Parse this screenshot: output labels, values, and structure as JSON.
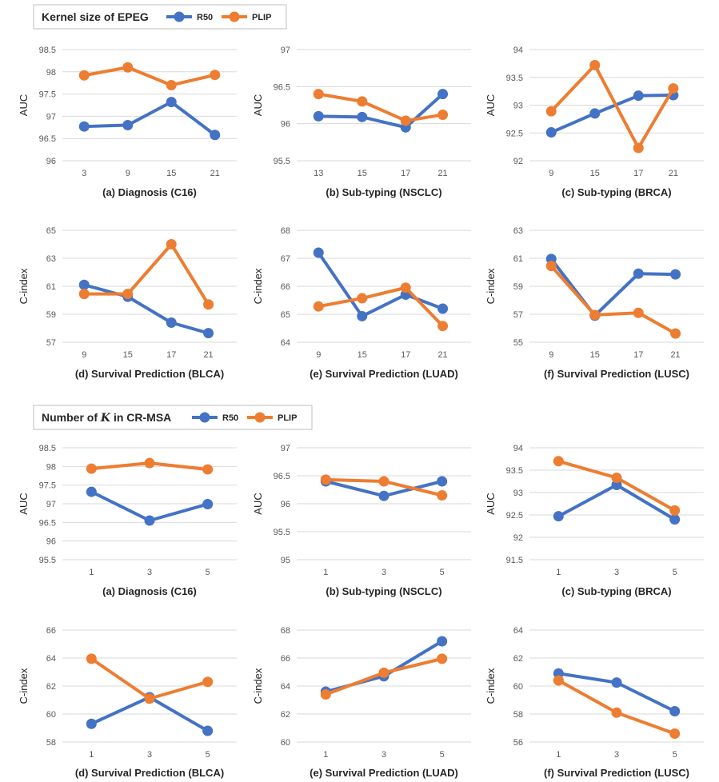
{
  "colors": {
    "r50": "#4472C4",
    "plip": "#ED7D31",
    "grid": "#d9d9d9",
    "text": "#595959"
  },
  "legend": {
    "series": [
      "R50",
      "PLIP"
    ]
  },
  "groups": [
    {
      "title": "Kernel size of EPEG",
      "title_parts": [
        "Kernel size of EPEG"
      ]
    },
    {
      "title": "Number of K in CR-MSA",
      "title_parts": [
        "Number of ",
        "K",
        " in CR-MSA"
      ]
    }
  ],
  "chart_data": [
    {
      "group": 0,
      "type": "line",
      "caption": "(a) Diagnosis (C16)",
      "ylabel": "AUC",
      "categories": [
        "3",
        "9",
        "15",
        "21"
      ],
      "yticks": [
        96,
        96.5,
        97,
        97.5,
        98,
        98.5
      ],
      "ytick_labels": [
        "96",
        "96.5",
        "97",
        "97.5",
        "98",
        "98.5"
      ],
      "ylim": [
        96,
        98.5
      ],
      "last_x": 3,
      "series": [
        {
          "name": "R50",
          "values": [
            96.77,
            96.8,
            97.32,
            96.58
          ]
        },
        {
          "name": "PLIP",
          "values": [
            97.92,
            98.1,
            97.7,
            97.93
          ]
        }
      ]
    },
    {
      "group": 0,
      "type": "line",
      "caption": "(b) Sub-typing (NSCLC)",
      "ylabel": "AUC",
      "categories": [
        "13",
        "15",
        "17",
        "21"
      ],
      "yticks": [
        95.5,
        96,
        96.5,
        97
      ],
      "ytick_labels": [
        "95.5",
        "96",
        "96.5",
        "97"
      ],
      "ylim": [
        95.5,
        97
      ],
      "last_x": 2.85,
      "series": [
        {
          "name": "R50",
          "values": [
            96.1,
            96.09,
            95.95,
            96.4
          ]
        },
        {
          "name": "PLIP",
          "values": [
            96.4,
            96.3,
            96.04,
            96.12
          ]
        }
      ]
    },
    {
      "group": 0,
      "type": "line",
      "caption": "(c) Sub-typing (BRCA)",
      "ylabel": "AUC",
      "categories": [
        "9",
        "15",
        "17",
        "21"
      ],
      "yticks": [
        92,
        92.5,
        93,
        93.5,
        94
      ],
      "ytick_labels": [
        "92",
        "92.5",
        "93",
        "93.5",
        "94"
      ],
      "ylim": [
        92,
        94
      ],
      "last_x": 2.8,
      "series": [
        {
          "name": "R50",
          "values": [
            92.51,
            92.85,
            93.17,
            93.18
          ]
        },
        {
          "name": "PLIP",
          "values": [
            92.89,
            93.72,
            92.23,
            93.3
          ]
        }
      ]
    },
    {
      "group": 0,
      "type": "line",
      "caption": "(d) Survival Prediction (BLCA)",
      "ylabel": "C-index",
      "categories": [
        "9",
        "15",
        "17",
        "21"
      ],
      "yticks": [
        57,
        59,
        61,
        63,
        65
      ],
      "ytick_labels": [
        "57",
        "59",
        "61",
        "63",
        "65"
      ],
      "ylim": [
        57,
        65
      ],
      "last_x": 2.85,
      "series": [
        {
          "name": "R50",
          "values": [
            61.1,
            60.25,
            58.4,
            57.65
          ]
        },
        {
          "name": "PLIP",
          "values": [
            60.45,
            60.45,
            64.0,
            59.7
          ]
        }
      ]
    },
    {
      "group": 0,
      "type": "line",
      "caption": "(e) Survival Prediction (LUAD)",
      "ylabel": "C-index",
      "categories": [
        "9",
        "15",
        "17",
        "21"
      ],
      "yticks": [
        64,
        65,
        66,
        67,
        68
      ],
      "ytick_labels": [
        "64",
        "65",
        "66",
        "67",
        "68"
      ],
      "ylim": [
        64,
        68
      ],
      "last_x": 2.85,
      "series": [
        {
          "name": "R50",
          "values": [
            67.2,
            64.93,
            65.7,
            65.2
          ]
        },
        {
          "name": "PLIP",
          "values": [
            65.28,
            65.57,
            65.95,
            64.58
          ]
        }
      ]
    },
    {
      "group": 0,
      "type": "line",
      "caption": "(f) Survival Prediction (LUSC)",
      "ylabel": "C-index",
      "categories": [
        "9",
        "15",
        "17",
        "21"
      ],
      "yticks": [
        55,
        57,
        59,
        61,
        63
      ],
      "ytick_labels": [
        "55",
        "57",
        "59",
        "61",
        "63"
      ],
      "ylim": [
        55,
        63
      ],
      "last_x": 2.85,
      "series": [
        {
          "name": "R50",
          "values": [
            60.95,
            56.9,
            59.9,
            59.85
          ]
        },
        {
          "name": "PLIP",
          "values": [
            60.45,
            56.95,
            57.1,
            55.62
          ]
        }
      ]
    },
    {
      "group": 1,
      "type": "line",
      "caption": "(a) Diagnosis (C16)",
      "ylabel": "AUC",
      "categories": [
        "1",
        "3",
        "5"
      ],
      "yticks": [
        95.5,
        96,
        96.5,
        97,
        97.5,
        98,
        98.5
      ],
      "ytick_labels": [
        "95.5",
        "96",
        "96.5",
        "97",
        "97.5",
        "98",
        "98.5"
      ],
      "ylim": [
        95.5,
        98.5
      ],
      "last_x": 2,
      "series": [
        {
          "name": "R50",
          "values": [
            97.32,
            96.55,
            96.99
          ]
        },
        {
          "name": "PLIP",
          "values": [
            97.94,
            98.09,
            97.92
          ]
        }
      ]
    },
    {
      "group": 1,
      "type": "line",
      "caption": "(b) Sub-typing (NSCLC)",
      "ylabel": "AUC",
      "categories": [
        "1",
        "3",
        "5"
      ],
      "yticks": [
        95,
        95.5,
        96,
        96.5,
        97
      ],
      "ytick_labels": [
        "95",
        "95.5",
        "96",
        "96.5",
        "97"
      ],
      "ylim": [
        95,
        97
      ],
      "last_x": 2,
      "series": [
        {
          "name": "R50",
          "values": [
            96.4,
            96.14,
            96.4
          ]
        },
        {
          "name": "PLIP",
          "values": [
            96.43,
            96.4,
            96.15
          ]
        }
      ]
    },
    {
      "group": 1,
      "type": "line",
      "caption": "(c) Sub-typing (BRCA)",
      "ylabel": "AUC",
      "categories": [
        "1",
        "3",
        "5"
      ],
      "yticks": [
        91.5,
        92,
        92.5,
        93,
        93.5,
        94
      ],
      "ytick_labels": [
        "91.5",
        "92",
        "92.5",
        "93",
        "93.5",
        "94"
      ],
      "ylim": [
        91.5,
        94
      ],
      "last_x": 2,
      "series": [
        {
          "name": "R50",
          "values": [
            92.47,
            93.17,
            92.4
          ]
        },
        {
          "name": "PLIP",
          "values": [
            93.7,
            93.33,
            92.6
          ]
        }
      ]
    },
    {
      "group": 1,
      "type": "line",
      "caption": "(d) Survival Prediction (BLCA)",
      "ylabel": "C-index",
      "categories": [
        "1",
        "3",
        "5"
      ],
      "yticks": [
        58,
        60,
        62,
        64,
        66
      ],
      "ytick_labels": [
        "58",
        "60",
        "62",
        "64",
        "66"
      ],
      "ylim": [
        58,
        66
      ],
      "last_x": 2,
      "series": [
        {
          "name": "R50",
          "values": [
            59.3,
            61.2,
            58.8
          ]
        },
        {
          "name": "PLIP",
          "values": [
            63.95,
            61.1,
            62.3
          ]
        }
      ]
    },
    {
      "group": 1,
      "type": "line",
      "caption": "(e) Survival Prediction (LUAD)",
      "ylabel": "C-index",
      "categories": [
        "1",
        "3",
        "5"
      ],
      "yticks": [
        60,
        62,
        64,
        66,
        68
      ],
      "ytick_labels": [
        "60",
        "62",
        "64",
        "66",
        "68"
      ],
      "ylim": [
        60,
        68
      ],
      "last_x": 2,
      "series": [
        {
          "name": "R50",
          "values": [
            63.6,
            64.7,
            67.2
          ]
        },
        {
          "name": "PLIP",
          "values": [
            63.4,
            64.95,
            65.95
          ]
        }
      ]
    },
    {
      "group": 1,
      "type": "line",
      "caption": "(f) Survival Prediction (LUSC)",
      "ylabel": "C-index",
      "categories": [
        "1",
        "3",
        "5"
      ],
      "yticks": [
        56,
        58,
        60,
        62,
        64
      ],
      "ytick_labels": [
        "56",
        "58",
        "60",
        "62",
        "64"
      ],
      "ylim": [
        56,
        64
      ],
      "last_x": 2,
      "series": [
        {
          "name": "R50",
          "values": [
            60.9,
            60.25,
            58.2
          ]
        },
        {
          "name": "PLIP",
          "values": [
            60.4,
            58.1,
            56.6
          ]
        }
      ]
    }
  ]
}
